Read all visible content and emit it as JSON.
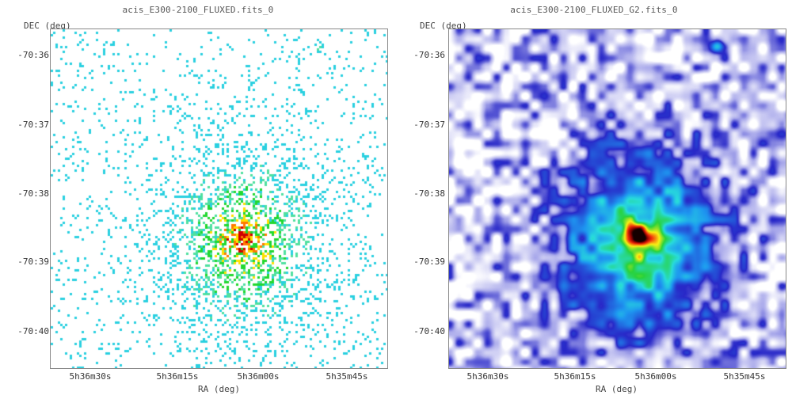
{
  "panels": [
    {
      "title": "acis_E300-2100_FLUXED.fits_0",
      "y_axis_label": "DEC (deg)",
      "x_axis_label": "RA (deg)",
      "y_ticks": [
        "-70:36",
        "-70:37",
        "-70:38",
        "-70:39",
        "-70:40"
      ],
      "x_ticks": [
        "5h36m30s",
        "5h36m15s",
        "5h36m00s",
        "5h35m45s"
      ],
      "style": "raw"
    },
    {
      "title": "acis_E300-2100_FLUXED_G2.fits_0",
      "y_axis_label": "DEC (deg)",
      "x_axis_label": "RA (deg)",
      "y_ticks": [
        "-70:36",
        "-70:37",
        "-70:38",
        "-70:39",
        "-70:40"
      ],
      "x_ticks": [
        "5h36m30s",
        "5h36m15s",
        "5h36m00s",
        "5h35m45s"
      ],
      "style": "smoothed"
    }
  ],
  "colors": {
    "frame": "#888888",
    "low": "#2ad0e0",
    "mid": "#22d830",
    "high": "#ffe000",
    "peak": "#d00000"
  }
}
